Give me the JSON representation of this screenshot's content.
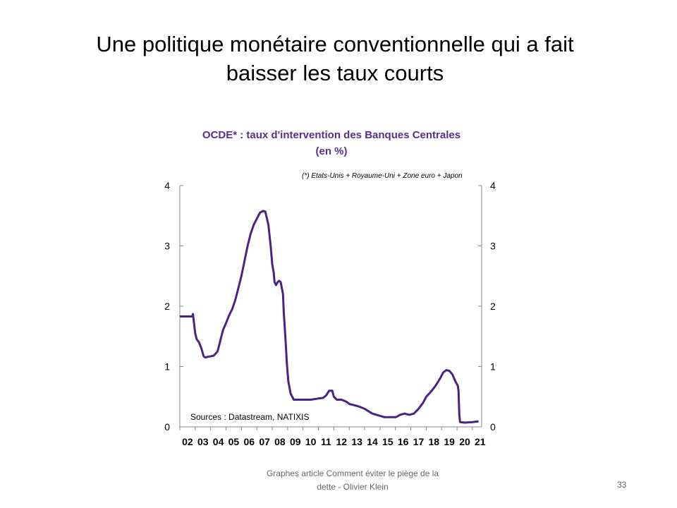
{
  "slide": {
    "title_line1": "Une politique monétaire conventionnelle qui a fait",
    "title_line2": "baisser les taux courts",
    "footer_line1": "Graphes article Comment  éviter le piège de la",
    "footer_line2": "dette - Olivier Klein",
    "page_number": "33"
  },
  "chart_data": {
    "type": "line",
    "title_line1": "OCDE* : taux d'intervention des Banques Centrales",
    "title_line2": "(en %)",
    "note": "(*) Etats-Unis + Royaume-Uni + Zone euro + Japon",
    "source": "Sources : Datastream, NATIXIS",
    "title_color": "#5b2d8e",
    "line_color": "#4b2383",
    "xlim": [
      2002,
      2021.6
    ],
    "ylim": [
      0,
      4
    ],
    "yticks": [
      0,
      1,
      2,
      3,
      4
    ],
    "xtick_labels": [
      "02",
      "03",
      "04",
      "05",
      "06",
      "07",
      "08",
      "09",
      "10",
      "11",
      "12",
      "13",
      "14",
      "15",
      "16",
      "17",
      "18",
      "19",
      "20",
      "21"
    ],
    "series": [
      {
        "x": [
          2002.0,
          2002.8,
          2002.85,
          2003.0,
          2003.1,
          2003.25,
          2003.4,
          2003.55,
          2003.65,
          2003.8,
          2004.0,
          2004.2,
          2004.45,
          2004.6,
          2004.8,
          2005.0,
          2005.2,
          2005.4,
          2005.6,
          2005.8,
          2006.0,
          2006.2,
          2006.4,
          2006.6,
          2006.8,
          2007.0,
          2007.2,
          2007.4,
          2007.55,
          2007.75,
          2007.9,
          2008.0,
          2008.1,
          2008.15,
          2008.25,
          2008.35,
          2008.45,
          2008.55,
          2008.7,
          2008.75,
          2008.85,
          2008.95,
          2009.05,
          2009.2,
          2009.4,
          2009.6,
          2010.0,
          2010.5,
          2011.0,
          2011.3,
          2011.5,
          2011.7,
          2011.9,
          2012.0,
          2012.2,
          2012.5,
          2012.8,
          2013.0,
          2013.3,
          2013.6,
          2014.0,
          2014.5,
          2014.9,
          2015.3,
          2015.7,
          2016.0,
          2016.1,
          2016.3,
          2016.6,
          2016.9,
          2017.2,
          2017.5,
          2017.8,
          2018.0,
          2018.3,
          2018.6,
          2018.9,
          2019.1,
          2019.3,
          2019.5,
          2019.7,
          2019.9,
          2020.05,
          2020.1,
          2020.15,
          2020.2,
          2020.5,
          2021.0,
          2021.4
        ],
        "y": [
          1.83,
          1.83,
          1.87,
          1.55,
          1.45,
          1.4,
          1.3,
          1.17,
          1.15,
          1.16,
          1.17,
          1.18,
          1.25,
          1.4,
          1.6,
          1.72,
          1.85,
          1.95,
          2.1,
          2.3,
          2.5,
          2.75,
          3.0,
          3.2,
          3.35,
          3.45,
          3.55,
          3.58,
          3.57,
          3.35,
          3.0,
          2.7,
          2.55,
          2.4,
          2.35,
          2.4,
          2.42,
          2.4,
          2.2,
          1.9,
          1.5,
          1.05,
          0.75,
          0.55,
          0.45,
          0.45,
          0.45,
          0.45,
          0.47,
          0.48,
          0.52,
          0.6,
          0.6,
          0.5,
          0.45,
          0.45,
          0.42,
          0.38,
          0.36,
          0.34,
          0.3,
          0.22,
          0.19,
          0.16,
          0.16,
          0.16,
          0.17,
          0.2,
          0.22,
          0.2,
          0.22,
          0.3,
          0.4,
          0.5,
          0.58,
          0.68,
          0.8,
          0.9,
          0.94,
          0.93,
          0.87,
          0.75,
          0.68,
          0.6,
          0.2,
          0.08,
          0.07,
          0.08,
          0.09
        ]
      }
    ]
  }
}
